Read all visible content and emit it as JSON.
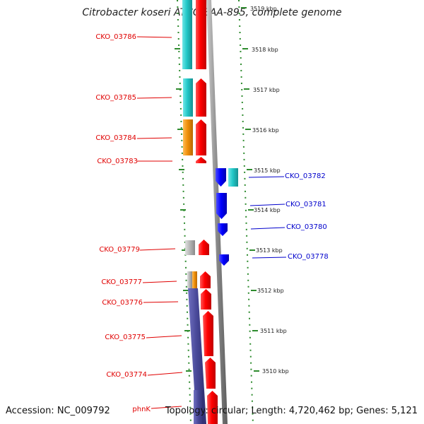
{
  "title": "Citrobacter koseri ATCC BAA-895, complete genome",
  "footer": {
    "accession": "Accession: NC_009792",
    "topology": "Topology: circular; Length: 4,720,462 bp; Genes: 5,121"
  },
  "colors": {
    "backbone": "#999999",
    "scale_dots": "#2e8b2e",
    "forward_label": "#e00000",
    "reverse_label": "#0000cc",
    "cds_forward": "#ff0000",
    "cds_reverse": "#0000ff",
    "cog_cyan": "#22c8c8",
    "cog_orange": "#f0900a",
    "cog_gray": "#b8b8b8",
    "cog_purple": "#4a4a9a"
  },
  "scale": {
    "labels": [
      "3519 kbp",
      "3518 kbp",
      "3517 kbp",
      "3516 kbp",
      "3515 kbp",
      "3514 kbp",
      "3513 kbp",
      "3512 kbp",
      "3511 kbp",
      "3510 kbp"
    ]
  },
  "genes_left": [
    {
      "name": "CKO_03786"
    },
    {
      "name": "CKO_03785"
    },
    {
      "name": "CKO_03784"
    },
    {
      "name": "CKO_03783"
    },
    {
      "name": "CKO_03779"
    },
    {
      "name": "CKO_03777"
    },
    {
      "name": "CKO_03776"
    },
    {
      "name": "CKO_03775"
    },
    {
      "name": "CKO_03774"
    },
    {
      "name": "phnK"
    }
  ],
  "genes_right": [
    {
      "name": "CKO_03782"
    },
    {
      "name": "CKO_03781"
    },
    {
      "name": "CKO_03780"
    },
    {
      "name": "CKO_03778"
    }
  ]
}
